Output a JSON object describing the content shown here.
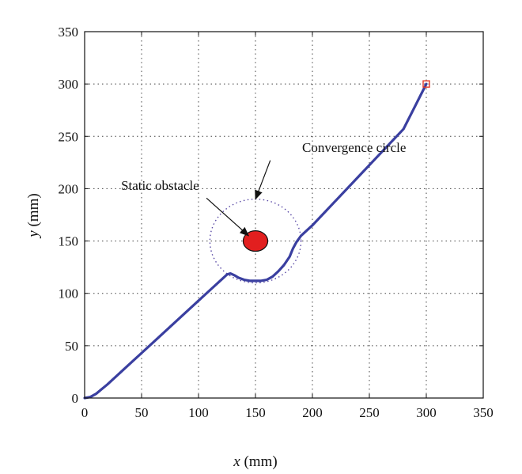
{
  "chart_data": {
    "type": "line",
    "title": "",
    "xlabel_var": "x",
    "xlabel_unit": " (mm)",
    "ylabel_var": "y",
    "ylabel_unit": " (mm)",
    "xlim": [
      0,
      350
    ],
    "ylim": [
      0,
      350
    ],
    "xticks": [
      "0",
      "50",
      "100",
      "150",
      "200",
      "250",
      "300",
      "350"
    ],
    "yticks": [
      "0",
      "50",
      "100",
      "150",
      "200",
      "250",
      "300",
      "350"
    ],
    "grid": true,
    "grid_style": "dotted",
    "series": [
      {
        "color": "#3a3fa0",
        "x": [
          0,
          5,
          10,
          20,
          30,
          40,
          50,
          60,
          70,
          80,
          90,
          100,
          110,
          120,
          125,
          128,
          132,
          135,
          140,
          145,
          150,
          155,
          160,
          165,
          170,
          175,
          180,
          183,
          186,
          190,
          200,
          220,
          240,
          260,
          280,
          300
        ],
        "y": [
          0,
          1,
          4,
          13,
          23,
          33,
          43,
          53,
          63,
          73,
          83,
          93,
          103,
          113,
          118,
          119,
          117,
          115,
          113,
          112,
          112,
          112,
          113,
          116,
          121,
          127,
          135,
          143,
          149,
          155,
          165,
          188,
          211,
          234,
          257,
          300
        ]
      }
    ],
    "obstacle": {
      "x": 150,
      "y": 150,
      "r": 10,
      "color": "#e21f1f",
      "edge": "#111111"
    },
    "convergence_circle": {
      "x": 150,
      "y": 150,
      "r": 40,
      "color": "#5a4aa6"
    },
    "goal_marker": {
      "x": 300,
      "y": 300,
      "color": "#e23b2b"
    },
    "annotations": [
      {
        "text": "Convergence circle",
        "text_x": 191,
        "text_y": 235,
        "arrow_from_x": 163,
        "arrow_from_y": 227,
        "arrow_to_x": 150,
        "arrow_to_y": 190
      },
      {
        "text": "Static obstacle",
        "text_x": 32,
        "text_y": 199,
        "arrow_from_x": 107,
        "arrow_from_y": 191,
        "arrow_to_x": 144,
        "arrow_to_y": 155
      }
    ]
  }
}
